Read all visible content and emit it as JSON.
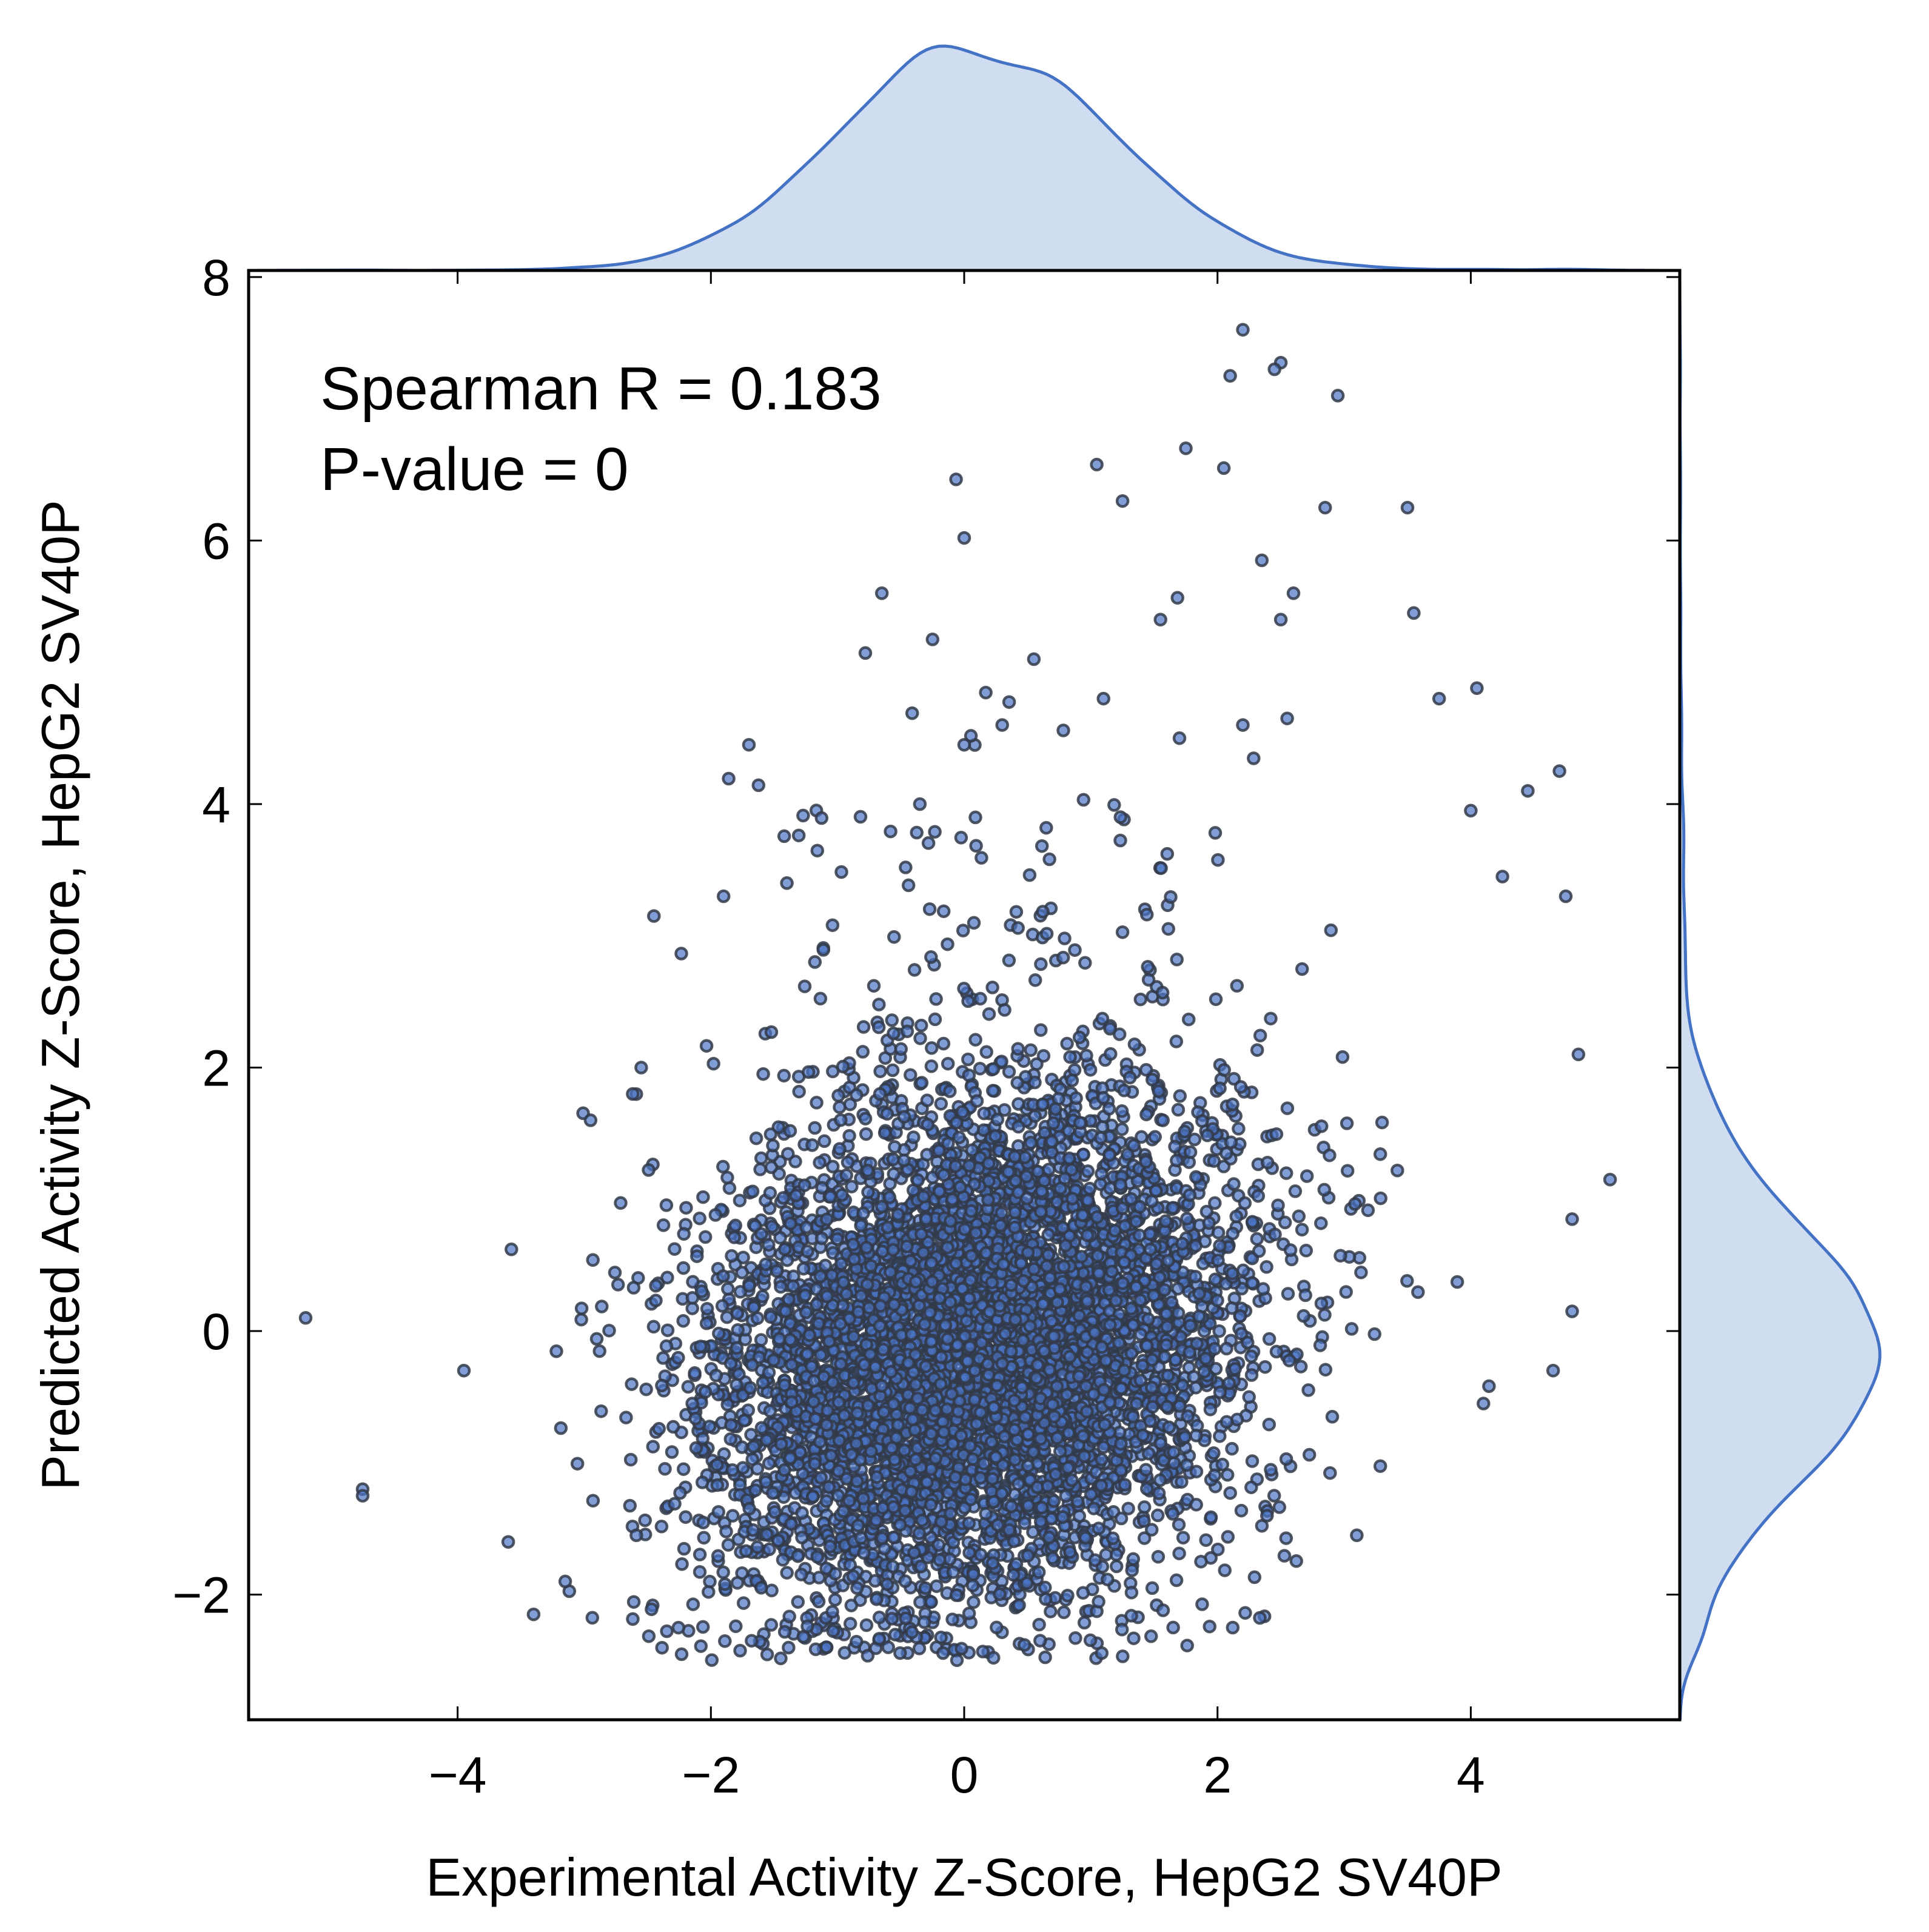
{
  "chart_data": {
    "type": "scatter",
    "title": "",
    "xlabel": "Experimental Activity Z-Score, HepG2 SV40P",
    "ylabel": "Predicted Activity Z-Score, HepG2 SV40P",
    "xlim": [
      -5.65,
      5.65
    ],
    "ylim": [
      -2.95,
      8.05
    ],
    "xticks": [
      -4,
      -2,
      0,
      2,
      4
    ],
    "yticks": [
      -2,
      0,
      2,
      4,
      6,
      8
    ],
    "xtick_labels": [
      "−4",
      "−2",
      "0",
      "2",
      "4"
    ],
    "ytick_labels": [
      "−2",
      "0",
      "2",
      "4",
      "6",
      "8"
    ],
    "annotations": [
      "Spearman R = 0.183",
      "P-value = 0"
    ],
    "grid": false,
    "colors": {
      "point": "#4a74c4",
      "kde": "#4472c4",
      "kde_fill": "#4472c4"
    },
    "point_cloud": {
      "approx_count": 6500,
      "x_mean": 0.1,
      "x_sd": 1.05,
      "y_mean": -0.2,
      "y_sd": 0.95,
      "correlation": 0.183
    },
    "outliers": [
      [
        -5.2,
        0.1
      ],
      [
        -4.75,
        -1.2
      ],
      [
        -4.75,
        -1.25
      ],
      [
        -3.4,
        -2.15
      ],
      [
        -3.95,
        -0.3
      ],
      [
        -3.6,
        -1.6
      ],
      [
        -1.7,
        4.45
      ],
      [
        -0.65,
        5.6
      ],
      [
        0.0,
        6.02
      ],
      [
        -0.25,
        5.25
      ],
      [
        2.2,
        7.6
      ],
      [
        2.5,
        7.35
      ],
      [
        2.1,
        7.25
      ],
      [
        2.95,
        7.1
      ],
      [
        2.45,
        7.3
      ],
      [
        1.75,
        6.7
      ],
      [
        2.05,
        6.55
      ],
      [
        1.25,
        6.3
      ],
      [
        3.5,
        6.25
      ],
      [
        2.85,
        6.25
      ],
      [
        2.35,
        5.85
      ],
      [
        2.6,
        5.6
      ],
      [
        3.55,
        5.45
      ],
      [
        2.5,
        5.4
      ],
      [
        1.55,
        5.4
      ],
      [
        1.7,
        4.5
      ],
      [
        3.75,
        4.8
      ],
      [
        0.55,
        5.1
      ],
      [
        2.2,
        4.6
      ],
      [
        2.55,
        4.65
      ],
      [
        4.7,
        4.25
      ],
      [
        4.45,
        4.1
      ],
      [
        4.0,
        3.95
      ],
      [
        4.25,
        3.45
      ],
      [
        4.75,
        3.3
      ],
      [
        4.85,
        2.1
      ],
      [
        5.1,
        1.15
      ],
      [
        4.8,
        0.85
      ],
      [
        4.8,
        0.15
      ],
      [
        4.65,
        -0.3
      ],
      [
        4.1,
        -0.55
      ],
      [
        -2.45,
        3.15
      ],
      [
        -1.9,
        3.3
      ],
      [
        -1.4,
        3.4
      ],
      [
        -0.35,
        4.0
      ],
      [
        0.3,
        4.6
      ],
      [
        0.0,
        4.45
      ],
      [
        1.1,
        4.8
      ],
      [
        3.1,
        -1.55
      ],
      [
        -0.6,
        -2.4
      ],
      [
        0.6,
        -2.35
      ],
      [
        1.65,
        -2.25
      ],
      [
        -3.15,
        -1.9
      ],
      [
        -2.95,
        1.6
      ],
      [
        -2.55,
        2.0
      ]
    ]
  }
}
